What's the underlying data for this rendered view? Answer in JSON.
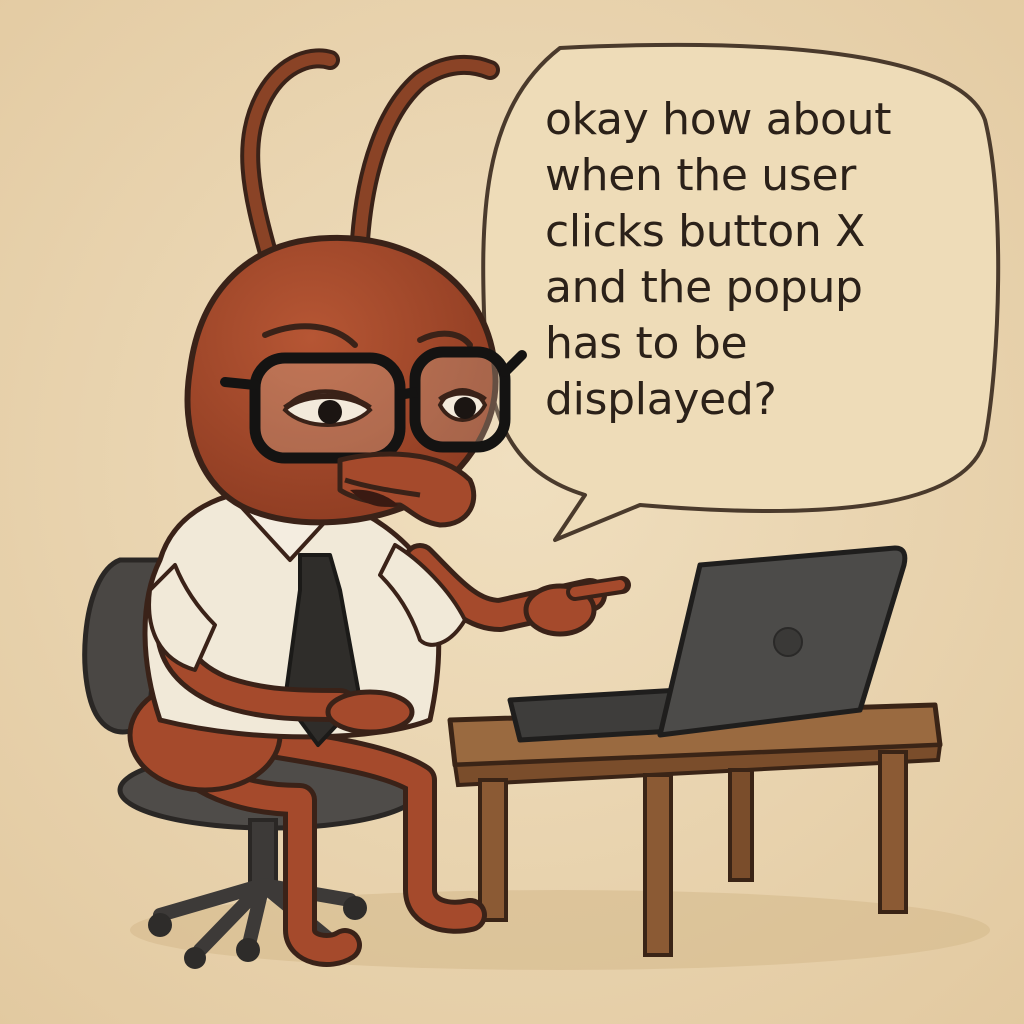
{
  "speech_bubble": {
    "lines": [
      "okay how about",
      "when the user",
      "clicks button X",
      "and the popup",
      "has to be",
      "displayed?"
    ]
  },
  "colors": {
    "background": "#ecd8b4",
    "ant_body": "#a54a2c",
    "ant_outline": "#3a2218",
    "shirt": "#f1e9d8",
    "tie": "#2f2d2a",
    "chair": "#4a4744",
    "laptop": "#4c4b49",
    "desk": "#8b5a34",
    "text": "#2b2119"
  },
  "icons": {
    "character": "ant-icon",
    "laptop": "laptop-icon",
    "chair": "office-chair-icon",
    "desk": "desk-icon"
  }
}
